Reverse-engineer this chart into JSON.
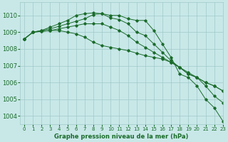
{
  "background_color": "#c8e8e8",
  "grid_color": "#a0c8c8",
  "line_color": "#1a6b2a",
  "xlabel": "Graphe pression niveau de la mer (hPa)",
  "xlim": [
    -0.5,
    23
  ],
  "ylim": [
    1003.5,
    1010.8
  ],
  "yticks": [
    1004,
    1005,
    1006,
    1007,
    1008,
    1009,
    1010
  ],
  "xticks": [
    0,
    1,
    2,
    3,
    4,
    5,
    6,
    7,
    8,
    9,
    10,
    11,
    12,
    13,
    14,
    15,
    16,
    17,
    18,
    19,
    20,
    21,
    22,
    23
  ],
  "series": [
    [
      1008.6,
      1009.0,
      1009.1,
      1009.3,
      1009.5,
      1009.7,
      1010.0,
      1010.1,
      1010.15,
      1010.1,
      1010.0,
      1010.0,
      1009.8,
      1009.7,
      1009.7,
      1009.1,
      1008.3,
      1007.5,
      1006.5,
      1006.3,
      1005.8,
      1005.0,
      1004.5,
      1003.7
    ],
    [
      1008.6,
      1009.0,
      1009.1,
      1009.2,
      1009.35,
      1009.5,
      1009.65,
      1009.8,
      1010.05,
      1010.1,
      1009.85,
      1009.75,
      1009.5,
      1009.0,
      1008.8,
      1008.3,
      1007.8,
      1007.3,
      1006.9,
      1006.6,
      1006.3,
      1005.8,
      1005.2,
      1004.8
    ],
    [
      1008.6,
      1009.0,
      1009.05,
      1009.1,
      1009.2,
      1009.3,
      1009.4,
      1009.5,
      1009.5,
      1009.5,
      1009.3,
      1009.1,
      1008.8,
      1008.4,
      1008.1,
      1007.8,
      1007.5,
      1007.2,
      1006.9,
      1006.5,
      1006.3,
      1006.0,
      1005.8,
      1005.5
    ],
    [
      1008.6,
      1009.0,
      1009.05,
      1009.1,
      1009.1,
      1009.0,
      1008.9,
      1008.7,
      1008.4,
      1008.2,
      1008.1,
      1008.0,
      1007.9,
      1007.75,
      1007.6,
      1007.5,
      1007.4,
      1007.2,
      1006.9,
      1006.5,
      1006.3,
      1006.0,
      1005.8,
      1005.5
    ]
  ],
  "figsize": [
    3.2,
    2.0
  ],
  "dpi": 100
}
